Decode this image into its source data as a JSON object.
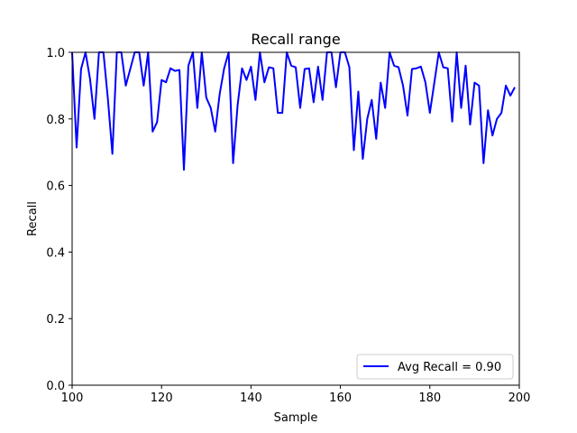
{
  "chart_data": {
    "type": "line",
    "title": "Recall range",
    "xlabel": "Sample",
    "ylabel": "Recall",
    "xlim": [
      100,
      200
    ],
    "ylim": [
      0.0,
      1.0
    ],
    "xticks": [
      "100",
      "120",
      "140",
      "160",
      "180",
      "200"
    ],
    "yticks": [
      "0.0",
      "0.2",
      "0.4",
      "0.6",
      "0.8",
      "1.0"
    ],
    "grid": false,
    "legend_position": "lower-right",
    "series": [
      {
        "name": "Avg Recall = 0.90",
        "color": "#0000ff",
        "x": [
          100,
          101,
          102,
          103,
          104,
          105,
          106,
          107,
          108,
          109,
          110,
          111,
          112,
          113,
          114,
          115,
          116,
          117,
          118,
          119,
          120,
          121,
          122,
          123,
          124,
          125,
          126,
          127,
          128,
          129,
          130,
          131,
          132,
          133,
          134,
          135,
          136,
          137,
          138,
          139,
          140,
          141,
          142,
          143,
          144,
          145,
          146,
          147,
          148,
          149,
          150,
          151,
          152,
          153,
          154,
          155,
          156,
          157,
          158,
          159,
          160,
          161,
          162,
          163,
          164,
          165,
          166,
          167,
          168,
          169,
          170,
          171,
          172,
          173,
          174,
          175,
          176,
          177,
          178,
          179,
          180,
          181,
          182,
          183,
          184,
          185,
          186,
          187,
          188,
          189,
          190,
          191,
          192,
          193,
          194,
          195,
          196,
          197,
          198,
          199
        ],
        "y": [
          1.0,
          0.714,
          0.95,
          1.0,
          0.92,
          0.8,
          1.0,
          1.0,
          0.86,
          0.695,
          1.0,
          1.0,
          0.9,
          0.95,
          1.0,
          1.0,
          0.9,
          1.0,
          0.762,
          0.79,
          0.917,
          0.91,
          0.952,
          0.944,
          0.947,
          0.647,
          0.96,
          1.0,
          0.833,
          1.0,
          0.864,
          0.833,
          0.762,
          0.875,
          0.952,
          1.0,
          0.667,
          0.84,
          0.952,
          0.917,
          0.957,
          0.857,
          1.0,
          0.91,
          0.955,
          0.952,
          0.818,
          0.818,
          1.0,
          0.96,
          0.955,
          0.833,
          0.95,
          0.952,
          0.85,
          0.957,
          0.857,
          1.0,
          1.0,
          0.895,
          1.0,
          1.0,
          0.955,
          0.706,
          0.882,
          0.68,
          0.8,
          0.857,
          0.74,
          0.909,
          0.833,
          1.0,
          0.96,
          0.955,
          0.9,
          0.81,
          0.95,
          0.952,
          0.957,
          0.91,
          0.818,
          0.909,
          1.0,
          0.955,
          0.952,
          0.792,
          1.0,
          0.833,
          0.96,
          0.783,
          0.909,
          0.9,
          0.667,
          0.826,
          0.75,
          0.8,
          0.818,
          0.9,
          0.87,
          0.895
        ]
      }
    ]
  }
}
